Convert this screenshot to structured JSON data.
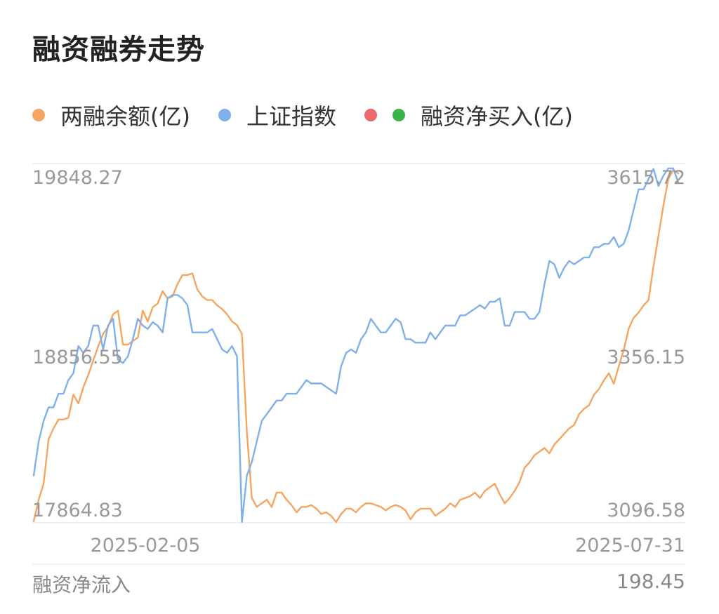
{
  "title": "融资融券走势",
  "legend": {
    "margin_balance": "两融余额(亿)",
    "index": "上证指数",
    "net_buy": "融资净买入(亿)"
  },
  "colors": {
    "margin_balance": "#f5a560",
    "index": "#7fb0ea",
    "net_buy_pos": "#eb6a6e",
    "net_buy_neg": "#3cb24a",
    "grid": "#eeeeee"
  },
  "footer": {
    "label": "融资净流入",
    "value": "198.45"
  },
  "chart_data": {
    "type": "line",
    "x_start_label": "2025-02-05",
    "x_end_label": "2025-07-31",
    "left_axis": {
      "ticks": [
        "19848.27",
        "18856.55",
        "17864.83"
      ],
      "range": [
        17864.83,
        19848.27
      ]
    },
    "right_axis": {
      "ticks": [
        "3615.72",
        "3356.15",
        "3096.58"
      ],
      "range": [
        3096.58,
        3615.72
      ]
    },
    "series": [
      {
        "key": "margin_balance",
        "axis": "left",
        "values": [
          17870,
          17990,
          18080,
          18330,
          18390,
          18440,
          18440,
          18450,
          18580,
          18530,
          18620,
          18690,
          18770,
          18850,
          18920,
          18960,
          19030,
          19050,
          18860,
          18860,
          18880,
          18900,
          19050,
          18990,
          19070,
          19090,
          19160,
          19120,
          19130,
          19200,
          19250,
          19250,
          19260,
          19170,
          19130,
          19110,
          19110,
          19080,
          19060,
          19030,
          18990,
          18970,
          18920,
          18370,
          18000,
          17950,
          17970,
          17990,
          17950,
          18030,
          18030,
          17990,
          17960,
          17920,
          17950,
          17950,
          17960,
          17940,
          17910,
          17920,
          17900,
          17860,
          17910,
          17940,
          17940,
          17920,
          17950,
          17970,
          17970,
          17960,
          17950,
          17930,
          17950,
          17960,
          17950,
          17930,
          17880,
          17920,
          17940,
          17940,
          17940,
          17900,
          17920,
          17940,
          17970,
          17950,
          17990,
          18000,
          18010,
          18030,
          18000,
          18040,
          18060,
          18080,
          18020,
          17970,
          18000,
          18040,
          18090,
          18170,
          18200,
          18240,
          18260,
          18280,
          18250,
          18300,
          18330,
          18360,
          18390,
          18410,
          18470,
          18500,
          18520,
          18580,
          18610,
          18660,
          18700,
          18640,
          18740,
          18830,
          18950,
          19010,
          19040,
          19080,
          19110,
          19300,
          19470,
          19640,
          19790,
          19840,
          19820
        ]
      },
      {
        "key": "index",
        "axis": "right",
        "values": [
          3165,
          3215,
          3245,
          3265,
          3265,
          3285,
          3285,
          3305,
          3315,
          3355,
          3345,
          3355,
          3385,
          3385,
          3350,
          3385,
          3395,
          3335,
          3330,
          3340,
          3365,
          3395,
          3385,
          3380,
          3390,
          3385,
          3375,
          3425,
          3430,
          3430,
          3425,
          3415,
          3375,
          3375,
          3375,
          3375,
          3380,
          3365,
          3350,
          3345,
          3355,
          3340,
          3095,
          3165,
          3185,
          3215,
          3245,
          3255,
          3265,
          3275,
          3275,
          3285,
          3285,
          3285,
          3295,
          3305,
          3300,
          3300,
          3300,
          3295,
          3290,
          3285,
          3325,
          3345,
          3350,
          3345,
          3365,
          3375,
          3395,
          3385,
          3375,
          3375,
          3385,
          3395,
          3390,
          3365,
          3365,
          3360,
          3360,
          3360,
          3375,
          3365,
          3375,
          3385,
          3385,
          3385,
          3400,
          3400,
          3405,
          3410,
          3415,
          3410,
          3420,
          3420,
          3425,
          3385,
          3385,
          3405,
          3405,
          3405,
          3395,
          3395,
          3405,
          3445,
          3480,
          3475,
          3455,
          3470,
          3480,
          3475,
          3480,
          3485,
          3485,
          3500,
          3500,
          3505,
          3505,
          3515,
          3500,
          3505,
          3525,
          3555,
          3585,
          3585,
          3600,
          3615,
          3590,
          3605,
          3620,
          3620,
          3595
        ]
      }
    ]
  }
}
